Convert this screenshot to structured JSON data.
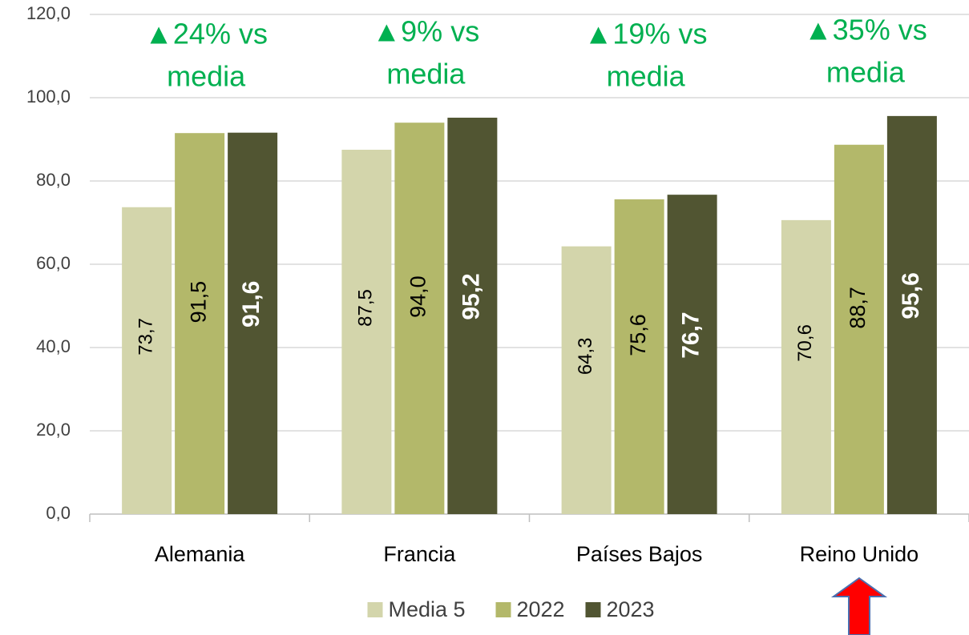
{
  "chart_data": {
    "type": "bar",
    "categories": [
      "Alemania",
      "Francia",
      "Países Bajos",
      "Reino Unido"
    ],
    "series": [
      {
        "name": "Media 5",
        "color": "#d3d5ab",
        "values": [
          73.7,
          87.5,
          64.3,
          70.6
        ],
        "value_labels": [
          "73,7",
          "87,5",
          "64,3",
          "70,6"
        ]
      },
      {
        "name": "2022",
        "color": "#b3b86a",
        "values": [
          91.5,
          94.0,
          75.6,
          88.7
        ],
        "value_labels": [
          "91,5",
          "94,0",
          "75,6",
          "88,7"
        ]
      },
      {
        "name": "2023",
        "color": "#515532",
        "values": [
          91.6,
          95.2,
          76.7,
          95.6
        ],
        "value_labels": [
          "91,6",
          "95,2",
          "76,7",
          "95,6"
        ]
      }
    ],
    "annotations": [
      {
        "lines": [
          "▲24% vs",
          "media"
        ]
      },
      {
        "lines": [
          "▲9% vs",
          "media"
        ]
      },
      {
        "lines": [
          "▲19% vs",
          "media"
        ]
      },
      {
        "lines": [
          "▲35% vs",
          "media"
        ]
      }
    ],
    "annotation_color": "#00b050",
    "ylim": [
      0,
      120
    ],
    "yticks": [
      {
        "value": 0,
        "label": "0,0"
      },
      {
        "value": 20,
        "label": "20,0"
      },
      {
        "value": 40,
        "label": "40,0"
      },
      {
        "value": 60,
        "label": "60,0"
      },
      {
        "value": 80,
        "label": "80,0"
      },
      {
        "value": 100,
        "label": "100,0"
      },
      {
        "value": 120,
        "label": "120,0"
      }
    ],
    "grid": true,
    "legend": "bottom"
  }
}
